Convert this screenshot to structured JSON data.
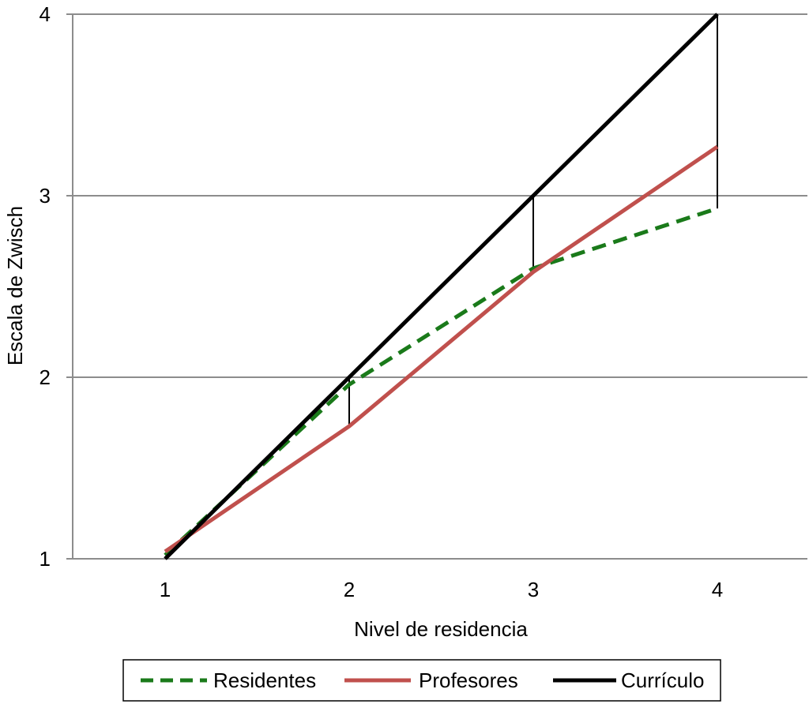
{
  "chart_data": {
    "type": "line",
    "title": "",
    "xlabel": "Nivel de residencia",
    "ylabel": "Escala de Zwisch",
    "categories": [
      "1",
      "2",
      "3",
      "4"
    ],
    "ylim": [
      1,
      4
    ],
    "yticks": [
      "1",
      "2",
      "3",
      "4"
    ],
    "grid": "horizontal",
    "legend_position": "bottom",
    "series": [
      {
        "name": "Residentes",
        "values": [
          1.02,
          1.96,
          2.6,
          2.93
        ],
        "color": "#1a7a1a",
        "style": "dashed"
      },
      {
        "name": "Profesores",
        "values": [
          1.04,
          1.73,
          2.58,
          3.27
        ],
        "color": "#c0504d",
        "style": "solid"
      },
      {
        "name": "Currículo",
        "values": [
          1.0,
          2.0,
          3.0,
          4.0
        ],
        "color": "#000000",
        "style": "solid"
      }
    ],
    "gap_lines": [
      {
        "x": "2",
        "from": 1.73,
        "to": 2.0
      },
      {
        "x": "3",
        "from": 2.58,
        "to": 3.0
      },
      {
        "x": "4",
        "from": 2.93,
        "to": 4.0
      }
    ]
  }
}
